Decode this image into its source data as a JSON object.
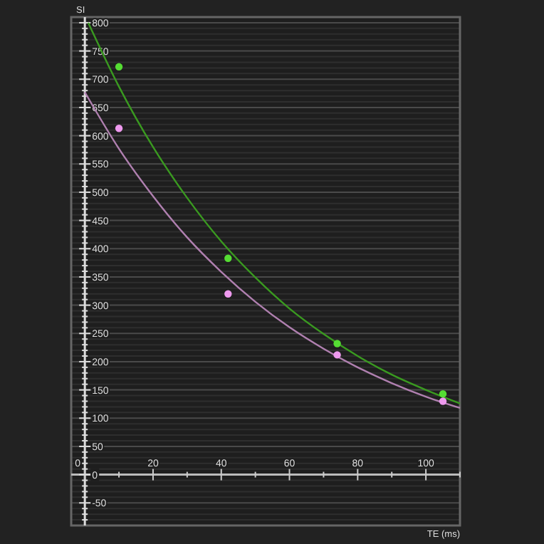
{
  "chart_data": {
    "type": "scatter",
    "xlabel": "TE (ms)",
    "ylabel": "SI",
    "xlim": [
      -4,
      110
    ],
    "ylim": [
      -90,
      810
    ],
    "xticks": [
      0,
      {
        "value": 10,
        "label": null
      },
      20,
      {
        "value": 30,
        "label": null
      },
      40,
      {
        "value": 50,
        "label": null
      },
      60,
      {
        "value": 70,
        "label": null
      },
      80,
      {
        "value": 90,
        "label": null
      },
      100,
      {
        "value": 110,
        "label": null
      }
    ],
    "yticks": [
      {
        "value": -80,
        "label": null
      },
      {
        "value": -70,
        "label": null
      },
      {
        "value": -60,
        "label": null
      },
      -50,
      {
        "value": -40,
        "label": null
      },
      {
        "value": -30,
        "label": null
      },
      {
        "value": -20,
        "label": null
      },
      {
        "value": -10,
        "label": null
      },
      0,
      {
        "value": 10,
        "label": null
      },
      {
        "value": 20,
        "label": null
      },
      {
        "value": 30,
        "label": null
      },
      {
        "value": 40,
        "label": null
      },
      50,
      {
        "value": 60,
        "label": null
      },
      {
        "value": 70,
        "label": null
      },
      {
        "value": 80,
        "label": null
      },
      {
        "value": 90,
        "label": null
      },
      100,
      {
        "value": 110,
        "label": null
      },
      {
        "value": 120,
        "label": null
      },
      {
        "value": 130,
        "label": null
      },
      {
        "value": 140,
        "label": null
      },
      150,
      {
        "value": 160,
        "label": null
      },
      {
        "value": 170,
        "label": null
      },
      {
        "value": 180,
        "label": null
      },
      {
        "value": 190,
        "label": null
      },
      200,
      {
        "value": 210,
        "label": null
      },
      {
        "value": 220,
        "label": null
      },
      {
        "value": 230,
        "label": null
      },
      {
        "value": 240,
        "label": null
      },
      250,
      {
        "value": 260,
        "label": null
      },
      {
        "value": 270,
        "label": null
      },
      {
        "value": 280,
        "label": null
      },
      {
        "value": 290,
        "label": null
      },
      300,
      {
        "value": 310,
        "label": null
      },
      {
        "value": 320,
        "label": null
      },
      {
        "value": 330,
        "label": null
      },
      {
        "value": 340,
        "label": null
      },
      350,
      {
        "value": 360,
        "label": null
      },
      {
        "value": 370,
        "label": null
      },
      {
        "value": 380,
        "label": null
      },
      {
        "value": 390,
        "label": null
      },
      400,
      {
        "value": 410,
        "label": null
      },
      {
        "value": 420,
        "label": null
      },
      {
        "value": 430,
        "label": null
      },
      {
        "value": 440,
        "label": null
      },
      450,
      {
        "value": 460,
        "label": null
      },
      {
        "value": 470,
        "label": null
      },
      {
        "value": 480,
        "label": null
      },
      {
        "value": 490,
        "label": null
      },
      500,
      {
        "value": 510,
        "label": null
      },
      {
        "value": 520,
        "label": null
      },
      {
        "value": 530,
        "label": null
      },
      {
        "value": 540,
        "label": null
      },
      550,
      {
        "value": 560,
        "label": null
      },
      {
        "value": 570,
        "label": null
      },
      {
        "value": 580,
        "label": null
      },
      {
        "value": 590,
        "label": null
      },
      600,
      {
        "value": 610,
        "label": null
      },
      {
        "value": 620,
        "label": null
      },
      {
        "value": 630,
        "label": null
      },
      {
        "value": 640,
        "label": null
      },
      650,
      {
        "value": 660,
        "label": null
      },
      {
        "value": 670,
        "label": null
      },
      {
        "value": 680,
        "label": null
      },
      {
        "value": 690,
        "label": null
      },
      700,
      {
        "value": 710,
        "label": null
      },
      {
        "value": 720,
        "label": null
      },
      {
        "value": 730,
        "label": null
      },
      {
        "value": 740,
        "label": null
      },
      750,
      {
        "value": 760,
        "label": null
      },
      {
        "value": 770,
        "label": null
      },
      {
        "value": 780,
        "label": null
      },
      {
        "value": 790,
        "label": null
      },
      800
    ],
    "grid": "y",
    "marker": "circle",
    "series": [
      {
        "type": "line",
        "marker": "none",
        "color": "#3a9a20",
        "x": [
          1,
          10,
          20,
          30,
          40,
          50,
          60,
          70,
          80,
          90,
          100,
          110
        ],
        "values": [
          800,
          687,
          580,
          490,
          413,
          349,
          294,
          249,
          210,
          177,
          150,
          126
        ]
      },
      {
        "type": "line",
        "marker": "none",
        "color": "#b080b0",
        "x": [
          0,
          10,
          20,
          30,
          40,
          50,
          60,
          70,
          80,
          90,
          100,
          110
        ],
        "values": [
          677,
          577,
          493,
          420,
          359,
          306,
          261,
          223,
          190,
          162,
          138,
          118
        ]
      },
      {
        "color": "#55dd33",
        "x": [
          10,
          42,
          74,
          105
        ],
        "values": [
          722,
          383,
          232,
          143
        ]
      },
      {
        "color": "#ee99ee",
        "x": [
          10,
          42,
          74,
          105
        ],
        "values": [
          613,
          320,
          212,
          130
        ]
      }
    ]
  }
}
